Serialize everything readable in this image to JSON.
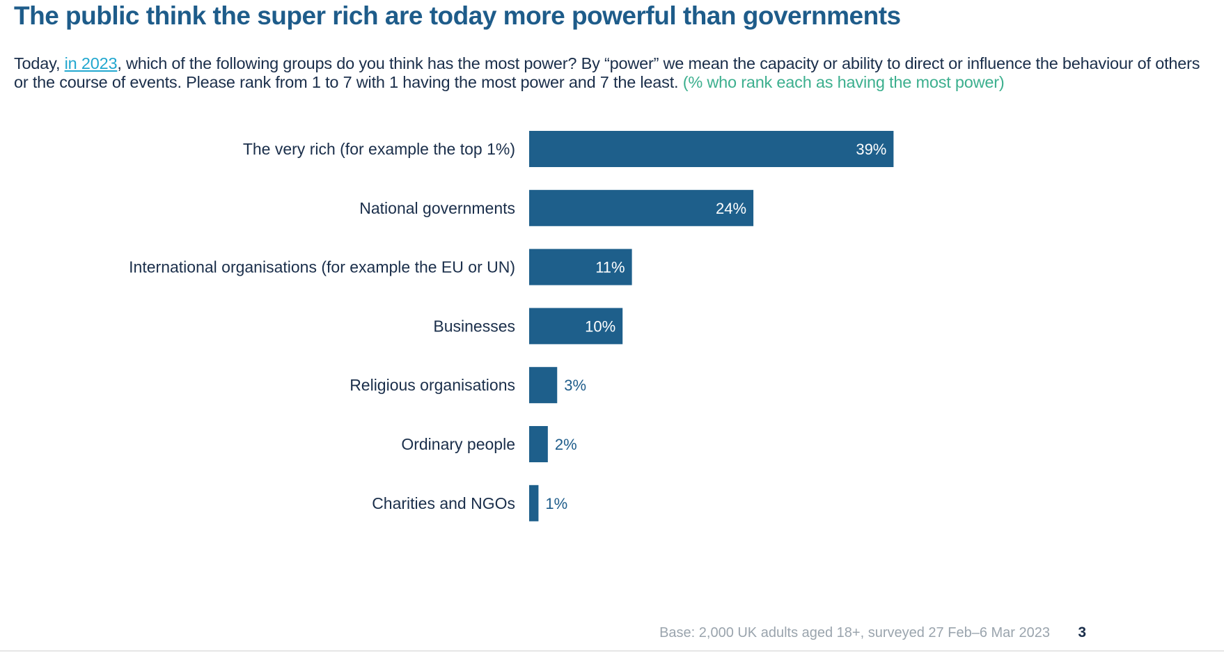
{
  "title": "The public think the super rich are today more powerful than governments",
  "question": {
    "prefix": "Today, ",
    "highlight": "in 2023",
    "body": ", which of the following groups do you think has the most power? By “power” we mean the capacity or ability to direct or influence the behaviour of others or the course of events. Please rank from 1 to 7 with 1 having the most power and 7 the least. ",
    "note": "(% who rank each as having the most power)"
  },
  "chart_data": {
    "type": "bar",
    "orientation": "horizontal",
    "categories": [
      "The very rich (for example the top 1%)",
      "National governments",
      "International organisations (for example the EU or UN)",
      "Businesses",
      "Religious organisations",
      "Ordinary people",
      "Charities and NGOs"
    ],
    "values": [
      39,
      24,
      11,
      10,
      3,
      2,
      1
    ],
    "value_labels": [
      "39%",
      "24%",
      "11%",
      "10%",
      "3%",
      "2%",
      "1%"
    ],
    "unit": "%",
    "grid": false,
    "legend": "none",
    "bar_color": "#1e5f8b"
  },
  "footer": {
    "base": "Base: 2,000 UK adults aged 18+, surveyed 27 Feb–6 Mar 2023",
    "page_number": "3"
  }
}
